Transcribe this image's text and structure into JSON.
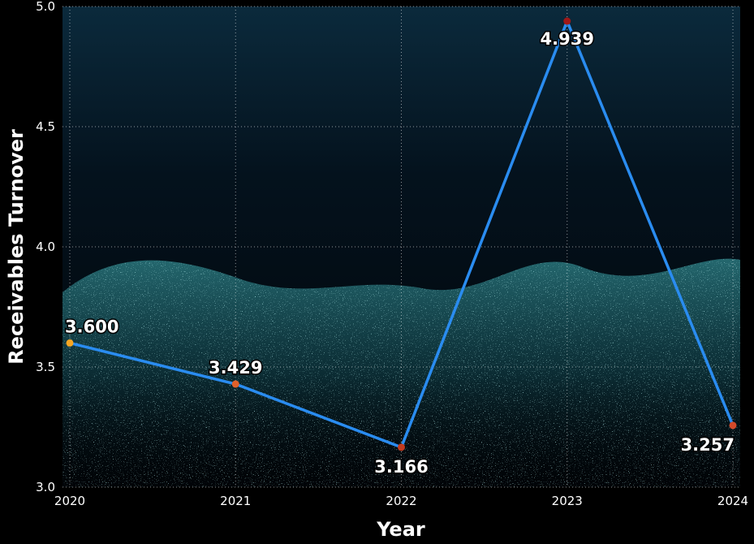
{
  "chart_data": {
    "type": "line",
    "x": [
      "2020",
      "2021",
      "2022",
      "2023",
      "2024"
    ],
    "series": [
      {
        "values": [
          3.6,
          3.429,
          3.166,
          4.939,
          3.257
        ],
        "labels": [
          "3.600",
          "3.429",
          "3.166",
          "4.939",
          "3.257"
        ],
        "color": "#2a8cf0",
        "point_colors": [
          "#f5a623",
          "#e0602a",
          "#c23a1e",
          "#a01818",
          "#d24a2a"
        ]
      }
    ],
    "xlabel": "Year",
    "ylabel": "Receivables Turnover",
    "ylim": [
      3.0,
      5.0
    ],
    "yticks": [
      "3.0",
      "3.5",
      "4.0",
      "4.5",
      "5.0"
    ],
    "grid": true
  }
}
